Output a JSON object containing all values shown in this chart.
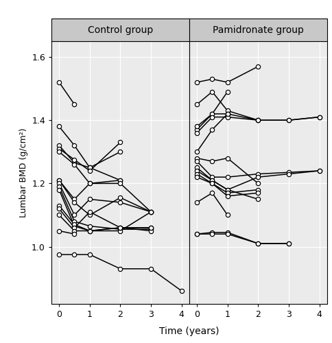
{
  "control_patients": [
    {
      "x": [
        0,
        0.5
      ],
      "y": [
        1.52,
        1.45
      ]
    },
    {
      "x": [
        0,
        0.5,
        1,
        2
      ],
      "y": [
        1.38,
        1.32,
        1.25,
        1.21
      ]
    },
    {
      "x": [
        0,
        0.5,
        1,
        2
      ],
      "y": [
        1.32,
        1.265,
        1.25,
        1.3
      ]
    },
    {
      "x": [
        0,
        0.5,
        1,
        2
      ],
      "y": [
        1.31,
        1.275,
        1.24,
        1.33
      ]
    },
    {
      "x": [
        0,
        0.5,
        1,
        2
      ],
      "y": [
        1.3,
        1.26,
        1.2,
        1.21
      ]
    },
    {
      "x": [
        0,
        0.5,
        1,
        2,
        3
      ],
      "y": [
        1.21,
        1.15,
        1.2,
        1.2,
        1.11
      ]
    },
    {
      "x": [
        0,
        0.5,
        1,
        2,
        3
      ],
      "y": [
        1.21,
        1.14,
        1.1,
        1.155,
        1.11
      ]
    },
    {
      "x": [
        0,
        0.5,
        1,
        2,
        3
      ],
      "y": [
        1.2,
        1.1,
        1.15,
        1.14,
        1.11
      ]
    },
    {
      "x": [
        0,
        0.5,
        1,
        2,
        3
      ],
      "y": [
        1.19,
        1.08,
        1.065,
        1.055,
        1.055
      ]
    },
    {
      "x": [
        0,
        0.5,
        1,
        2,
        3
      ],
      "y": [
        1.18,
        1.065,
        1.05,
        1.06,
        1.06
      ]
    },
    {
      "x": [
        0,
        0.5,
        1,
        2,
        3
      ],
      "y": [
        1.13,
        1.07,
        1.05,
        1.05,
        1.11
      ]
    },
    {
      "x": [
        0,
        0.5,
        1,
        2,
        3
      ],
      "y": [
        1.12,
        1.06,
        1.11,
        1.06,
        1.05
      ]
    },
    {
      "x": [
        0,
        0.5,
        1,
        2,
        3
      ],
      "y": [
        1.1,
        1.05,
        1.05,
        1.06,
        1.06
      ]
    },
    {
      "x": [
        0,
        0.5
      ],
      "y": [
        1.05,
        1.04
      ]
    },
    {
      "x": [
        0,
        0.5,
        1,
        2,
        3,
        4
      ],
      "y": [
        0.975,
        0.975,
        0.975,
        0.93,
        0.93,
        0.86
      ]
    }
  ],
  "pamidronate_patients": [
    {
      "x": [
        0,
        0.5,
        1,
        2
      ],
      "y": [
        1.52,
        1.53,
        1.52,
        1.57
      ]
    },
    {
      "x": [
        0,
        0.5,
        1,
        2
      ],
      "y": [
        1.45,
        1.49,
        1.43,
        1.4
      ]
    },
    {
      "x": [
        0,
        0.5,
        1
      ],
      "y": [
        1.37,
        1.42,
        1.49
      ]
    },
    {
      "x": [
        0,
        0.5,
        1,
        2,
        3,
        4
      ],
      "y": [
        1.38,
        1.42,
        1.42,
        1.4,
        1.4,
        1.41
      ]
    },
    {
      "x": [
        0,
        0.5,
        1,
        2,
        3,
        4
      ],
      "y": [
        1.36,
        1.41,
        1.41,
        1.4,
        1.4,
        1.41
      ]
    },
    {
      "x": [
        0,
        0.5,
        1
      ],
      "y": [
        1.3,
        1.37,
        1.42
      ]
    },
    {
      "x": [
        0,
        0.5,
        1,
        2
      ],
      "y": [
        1.28,
        1.27,
        1.28,
        1.2
      ]
    },
    {
      "x": [
        0,
        0.5,
        1,
        2,
        3,
        4
      ],
      "y": [
        1.27,
        1.22,
        1.22,
        1.23,
        1.235,
        1.24
      ]
    },
    {
      "x": [
        0,
        0.5,
        1,
        2,
        3,
        4
      ],
      "y": [
        1.25,
        1.21,
        1.18,
        1.22,
        1.23,
        1.24
      ]
    },
    {
      "x": [
        0,
        0.5,
        1,
        2
      ],
      "y": [
        1.24,
        1.21,
        1.18,
        1.15
      ]
    },
    {
      "x": [
        0,
        0.5,
        1,
        2
      ],
      "y": [
        1.23,
        1.2,
        1.17,
        1.18
      ]
    },
    {
      "x": [
        0,
        0.5,
        1,
        2
      ],
      "y": [
        1.22,
        1.2,
        1.16,
        1.17
      ]
    },
    {
      "x": [
        0,
        0.5,
        1
      ],
      "y": [
        1.14,
        1.17,
        1.1
      ]
    },
    {
      "x": [
        0,
        0.5,
        1,
        2,
        3
      ],
      "y": [
        1.04,
        1.045,
        1.045,
        1.01,
        1.01
      ]
    },
    {
      "x": [
        0,
        0.5,
        1,
        2,
        3
      ],
      "y": [
        1.04,
        1.04,
        1.04,
        1.01,
        1.01
      ]
    }
  ],
  "ylim": [
    0.82,
    1.65
  ],
  "yticks": [
    1.0,
    1.2,
    1.4,
    1.6
  ],
  "ytick_labels": [
    "1.0",
    "1.2",
    "1.4",
    "1.6"
  ],
  "xlim": [
    -0.25,
    4.25
  ],
  "xticks": [
    0,
    1,
    2,
    3,
    4
  ],
  "ylabel": "Lumbar BMD (g/cm²)",
  "xlabel": "Time (years)",
  "panel_titles": [
    "Control group",
    "Pamidronate group"
  ],
  "strip_bg": "#c8c8c8",
  "plot_bg": "#ebebeb",
  "grid_color": "#ffffff",
  "line_color": "#000000",
  "marker_facecolor": "#ffffff",
  "marker_edgecolor": "#000000",
  "marker_size": 4.5,
  "marker_edgewidth": 0.9,
  "line_width": 1.1
}
